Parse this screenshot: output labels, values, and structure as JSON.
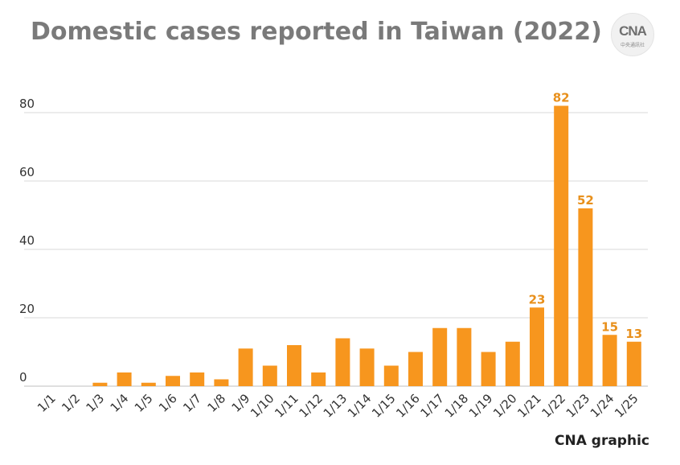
{
  "title": "Domestic cases reported in Taiwan (2022)",
  "logo": {
    "text": "CNA",
    "subtext": "中央通訊社"
  },
  "credit": "CNA graphic",
  "colors": {
    "bar": "#f7961e",
    "label": "#e8901c",
    "grid": "#d9d9d9",
    "title": "#7a7a7a"
  },
  "chart_data": {
    "type": "bar",
    "title": "Domestic cases reported in Taiwan (2022)",
    "xlabel": "",
    "ylabel": "",
    "categories": [
      "1/1",
      "1/2",
      "1/3",
      "1/4",
      "1/5",
      "1/6",
      "1/7",
      "1/8",
      "1/9",
      "1/10",
      "1/11",
      "1/12",
      "1/13",
      "1/14",
      "1/15",
      "1/16",
      "1/17",
      "1/18",
      "1/19",
      "1/20",
      "1/21",
      "1/22",
      "1/23",
      "1/24",
      "1/25"
    ],
    "values": [
      0,
      0,
      1,
      4,
      1,
      3,
      4,
      2,
      11,
      6,
      12,
      4,
      14,
      11,
      6,
      10,
      17,
      17,
      10,
      13,
      23,
      82,
      52,
      15,
      13
    ],
    "data_labels": [
      {
        "index": 20,
        "text": "23"
      },
      {
        "index": 21,
        "text": "82"
      },
      {
        "index": 22,
        "text": "52"
      },
      {
        "index": 23,
        "text": "15"
      },
      {
        "index": 24,
        "text": "13"
      }
    ],
    "ylim": [
      0,
      80
    ],
    "yticks": [
      "0",
      "20",
      "40",
      "60",
      "80"
    ],
    "grid": true,
    "legend": "none"
  }
}
